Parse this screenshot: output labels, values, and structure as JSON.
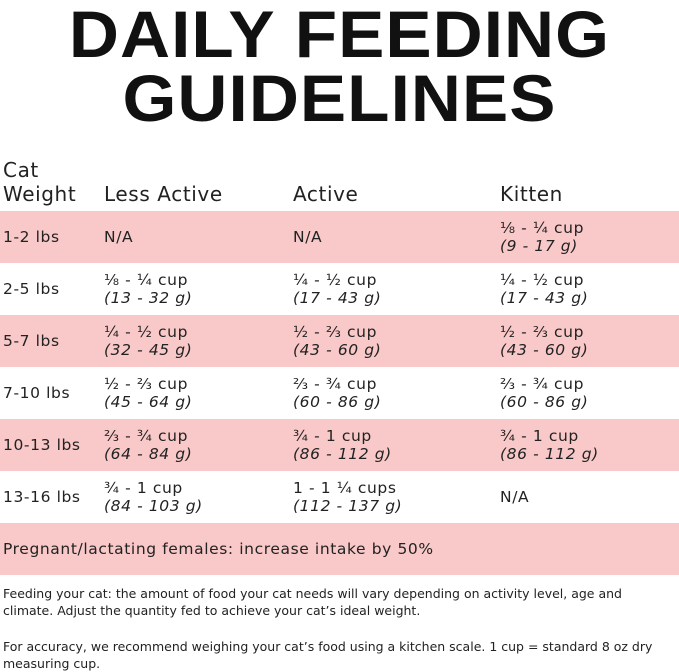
{
  "header": {
    "title_lines": [
      "DAILY FEEDING",
      "GUIDELINES"
    ]
  },
  "table": {
    "columns": [
      "Cat Weight",
      "Less Active",
      "Active",
      "Kitten"
    ],
    "rows": [
      {
        "weight": "1-2 lbs",
        "cells": [
          {
            "cup": "N/A"
          },
          {
            "cup": "N/A"
          },
          {
            "cup": "⅛ - ¼ cup",
            "grams": "(9 - 17 g)"
          }
        ]
      },
      {
        "weight": "2-5 lbs",
        "cells": [
          {
            "cup": "⅛ - ¼ cup",
            "grams": "(13 - 32 g)"
          },
          {
            "cup": "¼ - ½ cup",
            "grams": "(17 - 43 g)"
          },
          {
            "cup": "¼ - ½ cup",
            "grams": "(17 - 43 g)"
          }
        ]
      },
      {
        "weight": "5-7 lbs",
        "cells": [
          {
            "cup": "¼ - ½ cup",
            "grams": "(32 - 45 g)"
          },
          {
            "cup": "½ - ⅔ cup",
            "grams": "(43 - 60 g)"
          },
          {
            "cup": "½ - ⅔ cup",
            "grams": "(43 - 60 g)"
          }
        ]
      },
      {
        "weight": "7-10 lbs",
        "cells": [
          {
            "cup": "½ - ⅔ cup",
            "grams": "(45 - 64 g)"
          },
          {
            "cup": "⅔ - ¾ cup",
            "grams": "(60 - 86 g)"
          },
          {
            "cup": "⅔ - ¾ cup",
            "grams": "(60 - 86 g)"
          }
        ]
      },
      {
        "weight": "10-13 lbs",
        "cells": [
          {
            "cup": "⅔ - ¾ cup",
            "grams": "(64 - 84 g)"
          },
          {
            "cup": "¾ - 1 cup",
            "grams": "(86 - 112 g)"
          },
          {
            "cup": "¾ - 1 cup",
            "grams": "(86 - 112 g)"
          }
        ]
      },
      {
        "weight": "13-16 lbs",
        "cells": [
          {
            "cup": "¾ - 1 cup",
            "grams": "(84 - 103 g)"
          },
          {
            "cup": "1 - 1 ¼ cups",
            "grams": "(112 - 137 g)"
          },
          {
            "cup": "N/A"
          }
        ]
      }
    ],
    "footer_row": "Pregnant/lactating females: increase intake by 50%"
  },
  "notes": [
    "Feeding your cat: the amount of food your cat needs will vary depending on activity level, age and climate. Adjust the quantity fed to achieve your cat’s ideal weight.",
    "For accuracy, we recommend weighing your cat’s food using a kitchen scale. 1 cup = standard 8 oz dry measuring cup."
  ]
}
